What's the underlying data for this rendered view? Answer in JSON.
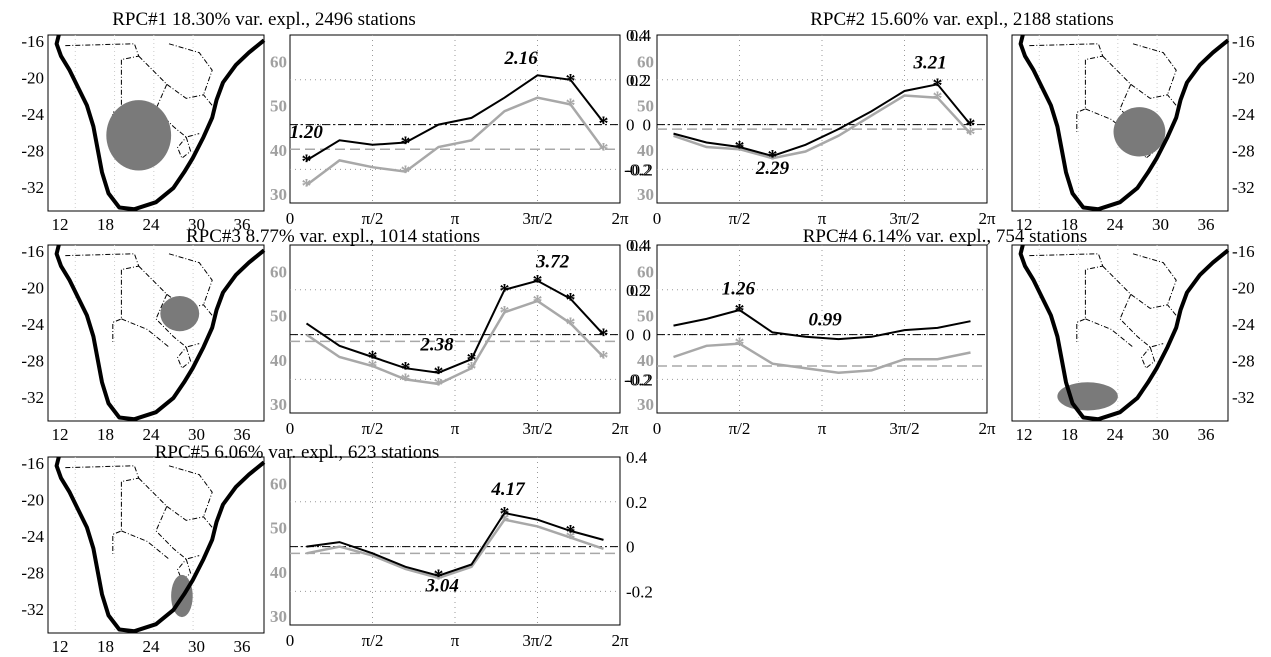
{
  "colors": {
    "black_series": "#000000",
    "gray_series": "#a8a8a8",
    "region_fill": "#7a7a7a",
    "coast": "#000000"
  },
  "x_tick_labels": [
    "0",
    "π/2",
    "π",
    "3π/2",
    "2π"
  ],
  "map_x_ticks": [
    "12",
    "18",
    "24",
    "30",
    "36"
  ],
  "map_y_ticks": [
    "-16",
    "-20",
    "-24",
    "-28",
    "-32"
  ],
  "gray_axis_ticks": [
    "60",
    "50",
    "40",
    "30"
  ],
  "right_axis_ticks": [
    "0.4",
    "0.2",
    "0",
    "-0.2"
  ],
  "chart_data": [
    {
      "type": "line",
      "title": "RPC#1 18.30% var. expl., 2496 stations",
      "x": [
        0.314,
        0.942,
        1.571,
        2.199,
        2.827,
        3.456,
        4.084,
        4.712,
        5.341,
        5.969
      ],
      "series": [
        {
          "values": [
            -0.16,
            -0.07,
            -0.09,
            -0.08,
            0.0,
            0.03,
            0.12,
            0.22,
            0.2,
            0.01
          ],
          "markers": [
            0,
            3,
            8,
            9
          ]
        },
        {
          "values": [
            -0.27,
            -0.16,
            -0.19,
            -0.21,
            -0.1,
            -0.07,
            0.06,
            0.12,
            0.09,
            -0.11
          ],
          "markers": [
            0,
            3,
            8,
            9
          ]
        }
      ],
      "zero_line": 0.0,
      "gray_ref": -0.11,
      "annotations": [
        {
          "text": "1.20",
          "x": 0.31,
          "y": -0.06
        },
        {
          "text": "2.16",
          "x": 4.4,
          "y": 0.27
        }
      ],
      "ylim": [
        -0.35,
        0.4
      ],
      "gray_ylim": [
        28,
        66
      ]
    },
    {
      "type": "line",
      "title": "RPC#2 15.60% var. expl., 2188 stations",
      "x": [
        0.314,
        0.942,
        1.571,
        2.199,
        2.827,
        3.456,
        4.084,
        4.712,
        5.341,
        5.969
      ],
      "series": [
        {
          "values": [
            -0.04,
            -0.08,
            -0.1,
            -0.14,
            -0.09,
            -0.02,
            0.06,
            0.15,
            0.18,
            0.0
          ],
          "markers": [
            2,
            3,
            8,
            9
          ]
        },
        {
          "values": [
            -0.05,
            -0.1,
            -0.11,
            -0.15,
            -0.12,
            -0.05,
            0.04,
            0.13,
            0.12,
            -0.04
          ],
          "markers": [
            2,
            3,
            8,
            9
          ]
        }
      ],
      "zero_line": 0.0,
      "gray_ref": -0.02,
      "annotations": [
        {
          "text": "2.29",
          "x": 2.2,
          "y": -0.22
        },
        {
          "text": "3.21",
          "x": 5.2,
          "y": 0.25
        }
      ],
      "ylim": [
        -0.35,
        0.4
      ],
      "gray_ylim": [
        28,
        66
      ]
    },
    {
      "type": "line",
      "title": "RPC#3 8.77% var. expl., 1014 stations",
      "x": [
        0.314,
        0.942,
        1.571,
        2.199,
        2.827,
        3.456,
        4.084,
        4.712,
        5.341,
        5.969
      ],
      "series": [
        {
          "values": [
            0.05,
            -0.05,
            -0.1,
            -0.15,
            -0.17,
            -0.11,
            0.2,
            0.24,
            0.16,
            0.0
          ],
          "markers": [
            2,
            3,
            4,
            5,
            6,
            7,
            8,
            9
          ]
        },
        {
          "values": [
            0.0,
            -0.1,
            -0.14,
            -0.2,
            -0.22,
            -0.15,
            0.1,
            0.15,
            0.05,
            -0.1
          ],
          "markers": [
            2,
            3,
            4,
            5,
            6,
            7,
            8,
            9
          ]
        }
      ],
      "zero_line": 0.0,
      "gray_ref": -0.03,
      "annotations": [
        {
          "text": "2.38",
          "x": 2.8,
          "y": -0.07
        },
        {
          "text": "3.72",
          "x": 5.0,
          "y": 0.3
        }
      ],
      "ylim": [
        -0.35,
        0.4
      ],
      "gray_ylim": [
        28,
        66
      ]
    },
    {
      "type": "line",
      "title": "RPC#4 6.14% var. expl., 754 stations",
      "x": [
        0.314,
        0.942,
        1.571,
        2.199,
        2.827,
        3.456,
        4.084,
        4.712,
        5.341,
        5.969
      ],
      "series": [
        {
          "values": [
            0.04,
            0.07,
            0.11,
            0.01,
            -0.01,
            -0.02,
            -0.01,
            0.02,
            0.03,
            0.06
          ],
          "markers": [
            2
          ]
        },
        {
          "values": [
            -0.1,
            -0.05,
            -0.04,
            -0.13,
            -0.15,
            -0.17,
            -0.16,
            -0.11,
            -0.11,
            -0.08
          ],
          "markers": [
            2
          ]
        }
      ],
      "zero_line": 0.0,
      "gray_ref": -0.14,
      "annotations": [
        {
          "text": "1.26",
          "x": 1.55,
          "y": 0.18
        },
        {
          "text": "0.99",
          "x": 3.2,
          "y": 0.04
        }
      ],
      "ylim": [
        -0.35,
        0.4
      ],
      "gray_ylim": [
        28,
        66
      ]
    },
    {
      "type": "line",
      "title": "RPC#5 6.06% var. expl., 623 stations",
      "x": [
        0.314,
        0.942,
        1.571,
        2.199,
        2.827,
        3.456,
        4.084,
        4.712,
        5.341,
        5.969
      ],
      "series": [
        {
          "values": [
            0.0,
            0.02,
            -0.03,
            -0.09,
            -0.13,
            -0.08,
            0.15,
            0.12,
            0.07,
            0.03
          ],
          "markers": [
            4,
            6,
            8
          ]
        },
        {
          "values": [
            -0.03,
            0.0,
            -0.04,
            -0.1,
            -0.14,
            -0.09,
            0.12,
            0.09,
            0.04,
            -0.01
          ],
          "markers": [
            4,
            6,
            8
          ]
        }
      ],
      "zero_line": 0.0,
      "gray_ref": -0.03,
      "annotations": [
        {
          "text": "3.04",
          "x": 2.9,
          "y": -0.2
        },
        {
          "text": "4.17",
          "x": 4.15,
          "y": 0.23
        }
      ],
      "ylim": [
        -0.35,
        0.4
      ],
      "gray_ylim": [
        28,
        66
      ]
    }
  ],
  "maps": [
    {
      "name": "map-rpc1",
      "region": "central-west"
    },
    {
      "name": "map-rpc2",
      "region": "central-east"
    },
    {
      "name": "map-rpc3",
      "region": "north-east"
    },
    {
      "name": "map-rpc4",
      "region": "south-west"
    },
    {
      "name": "map-rpc5",
      "region": "south-east"
    }
  ]
}
